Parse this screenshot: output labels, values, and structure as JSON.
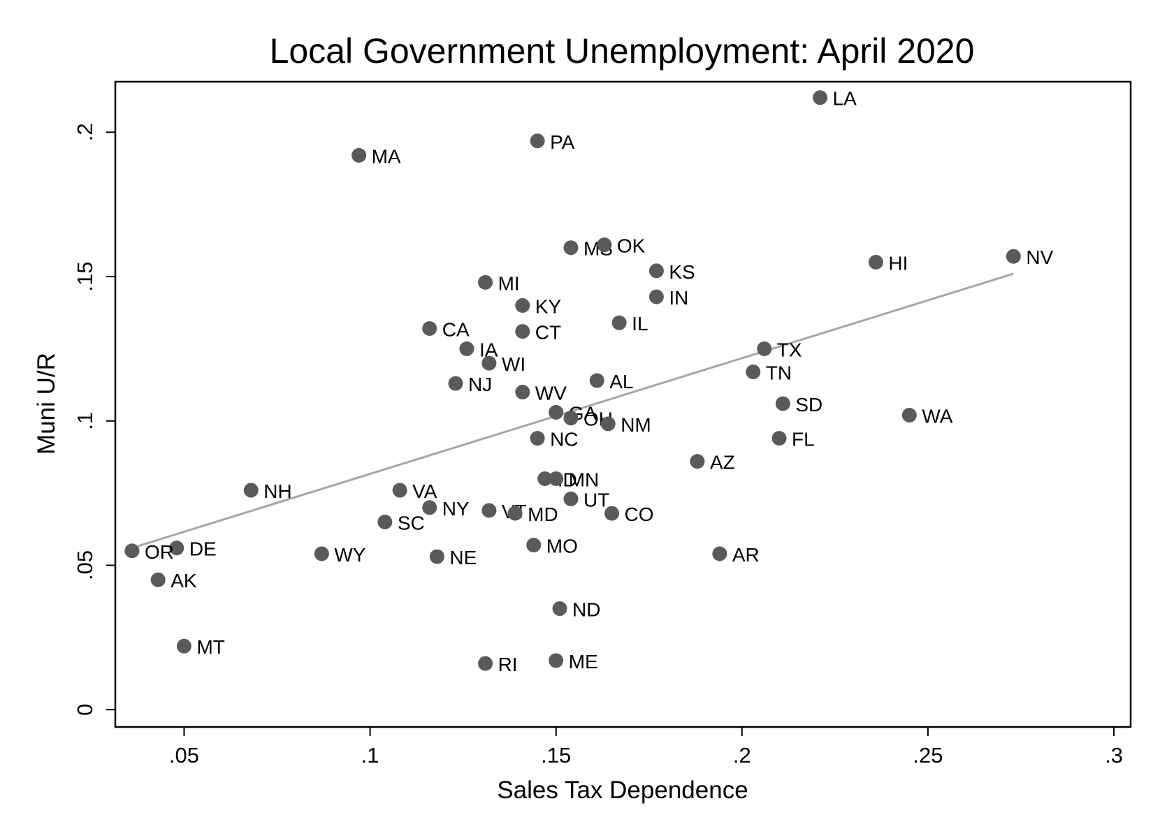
{
  "chart_data": {
    "type": "scatter",
    "title": "Local Government Unemployment: April 2020",
    "xlabel": "Sales Tax Dependence",
    "ylabel": "Muni U/R",
    "xlim": [
      0.0315,
      0.3045
    ],
    "ylim": [
      -0.006,
      0.2175
    ],
    "x_ticks": [
      {
        "value": 0.05,
        "label": ".05"
      },
      {
        "value": 0.1,
        "label": ".1"
      },
      {
        "value": 0.15,
        "label": ".15"
      },
      {
        "value": 0.2,
        "label": ".2"
      },
      {
        "value": 0.25,
        "label": ".25"
      },
      {
        "value": 0.3,
        "label": ".3"
      }
    ],
    "y_ticks": [
      {
        "value": 0,
        "label": "0"
      },
      {
        "value": 0.05,
        "label": ".05"
      },
      {
        "value": 0.1,
        "label": ".1"
      },
      {
        "value": 0.15,
        "label": ".15"
      },
      {
        "value": 0.2,
        "label": ".2"
      }
    ],
    "grid": false,
    "colors": {
      "points": "#5a5a5a",
      "fit_line": "#a6a6a6",
      "frame": "#000000"
    },
    "fit_line": {
      "x": [
        0.036,
        0.273
      ],
      "y": [
        0.056,
        0.151
      ]
    },
    "points": [
      {
        "label": "LA",
        "x": 0.221,
        "y": 0.212
      },
      {
        "label": "PA",
        "x": 0.145,
        "y": 0.197
      },
      {
        "label": "MA",
        "x": 0.097,
        "y": 0.192
      },
      {
        "label": "MS",
        "x": 0.154,
        "y": 0.16
      },
      {
        "label": "OK",
        "x": 0.163,
        "y": 0.161
      },
      {
        "label": "NV",
        "x": 0.273,
        "y": 0.157
      },
      {
        "label": "HI",
        "x": 0.236,
        "y": 0.155
      },
      {
        "label": "KS",
        "x": 0.177,
        "y": 0.152
      },
      {
        "label": "MI",
        "x": 0.131,
        "y": 0.148
      },
      {
        "label": "IN",
        "x": 0.177,
        "y": 0.143
      },
      {
        "label": "KY",
        "x": 0.141,
        "y": 0.14
      },
      {
        "label": "IL",
        "x": 0.167,
        "y": 0.134
      },
      {
        "label": "CA",
        "x": 0.116,
        "y": 0.132
      },
      {
        "label": "CT",
        "x": 0.141,
        "y": 0.131
      },
      {
        "label": "IA",
        "x": 0.126,
        "y": 0.125
      },
      {
        "label": "TX",
        "x": 0.206,
        "y": 0.125
      },
      {
        "label": "WI",
        "x": 0.132,
        "y": 0.12
      },
      {
        "label": "TN",
        "x": 0.203,
        "y": 0.117
      },
      {
        "label": "AL",
        "x": 0.161,
        "y": 0.114
      },
      {
        "label": "NJ",
        "x": 0.123,
        "y": 0.113
      },
      {
        "label": "WV",
        "x": 0.141,
        "y": 0.11
      },
      {
        "label": "SD",
        "x": 0.211,
        "y": 0.106
      },
      {
        "label": "GA",
        "x": 0.15,
        "y": 0.103
      },
      {
        "label": "WA",
        "x": 0.245,
        "y": 0.102
      },
      {
        "label": "OH",
        "x": 0.154,
        "y": 0.101
      },
      {
        "label": "NM",
        "x": 0.164,
        "y": 0.099
      },
      {
        "label": "NC",
        "x": 0.145,
        "y": 0.094
      },
      {
        "label": "FL",
        "x": 0.21,
        "y": 0.094
      },
      {
        "label": "AZ",
        "x": 0.188,
        "y": 0.086
      },
      {
        "label": "ID",
        "x": 0.147,
        "y": 0.08
      },
      {
        "label": "MN",
        "x": 0.15,
        "y": 0.08
      },
      {
        "label": "NH",
        "x": 0.068,
        "y": 0.076
      },
      {
        "label": "VA",
        "x": 0.108,
        "y": 0.076
      },
      {
        "label": "UT",
        "x": 0.154,
        "y": 0.073
      },
      {
        "label": "NY",
        "x": 0.116,
        "y": 0.07
      },
      {
        "label": "VT",
        "x": 0.132,
        "y": 0.069
      },
      {
        "label": "MD",
        "x": 0.139,
        "y": 0.068
      },
      {
        "label": "CO",
        "x": 0.165,
        "y": 0.068
      },
      {
        "label": "SC",
        "x": 0.104,
        "y": 0.065
      },
      {
        "label": "MO",
        "x": 0.144,
        "y": 0.057
      },
      {
        "label": "DE",
        "x": 0.048,
        "y": 0.056
      },
      {
        "label": "OR",
        "x": 0.036,
        "y": 0.055
      },
      {
        "label": "WY",
        "x": 0.087,
        "y": 0.054
      },
      {
        "label": "AR",
        "x": 0.194,
        "y": 0.054
      },
      {
        "label": "NE",
        "x": 0.118,
        "y": 0.053
      },
      {
        "label": "AK",
        "x": 0.043,
        "y": 0.045
      },
      {
        "label": "ND",
        "x": 0.151,
        "y": 0.035
      },
      {
        "label": "MT",
        "x": 0.05,
        "y": 0.022
      },
      {
        "label": "ME",
        "x": 0.15,
        "y": 0.017
      },
      {
        "label": "RI",
        "x": 0.131,
        "y": 0.016
      }
    ]
  }
}
